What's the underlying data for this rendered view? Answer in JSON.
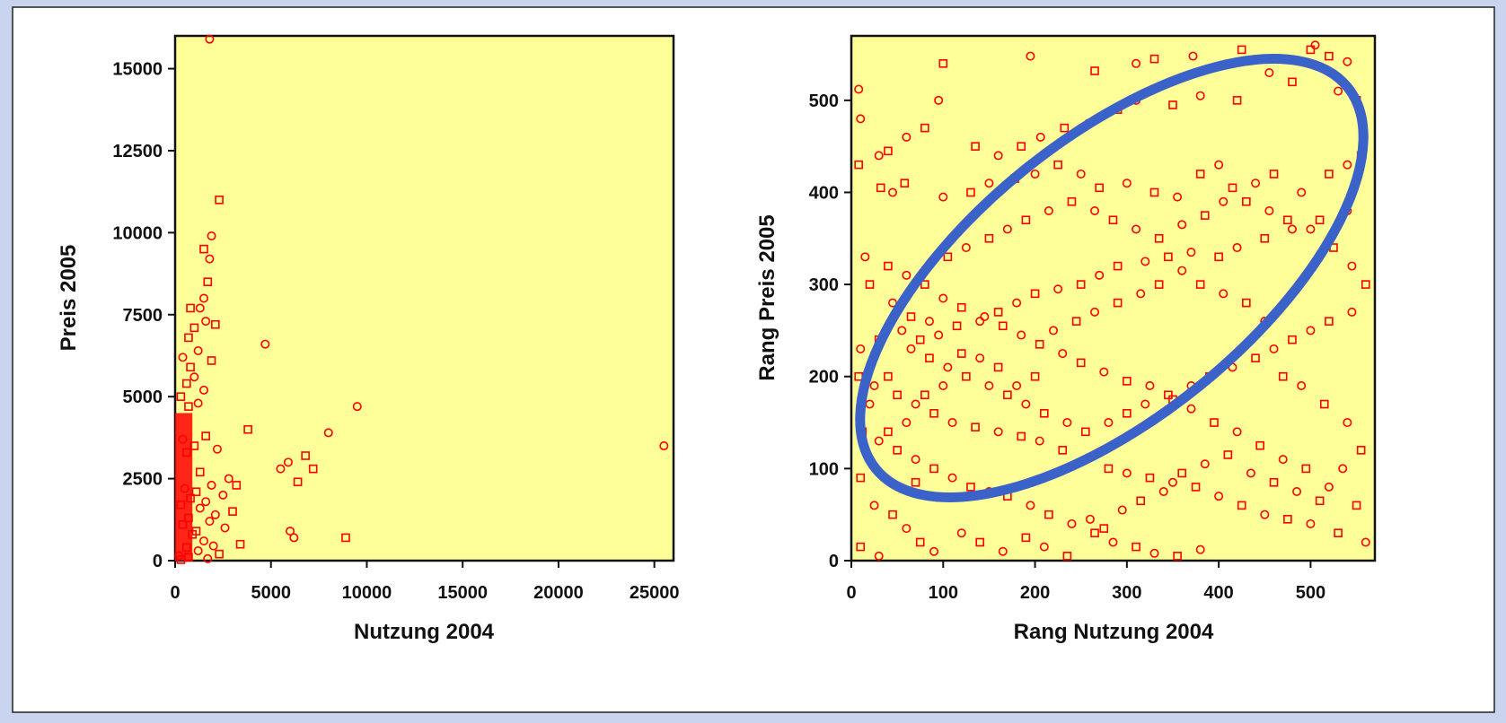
{
  "colors": {
    "plot_background": "#ffff99",
    "marker": "#ff0000",
    "highlight_ellipse": "#3a62c8",
    "panel_background": "#ffffff"
  },
  "chart_data": [
    {
      "type": "scatter",
      "title": "",
      "xlabel": "Nutzung 2004",
      "ylabel": "Preis 2005",
      "xlim": [
        0,
        26000
      ],
      "ylim": [
        0,
        16000
      ],
      "xticks": [
        0,
        5000,
        10000,
        15000,
        20000,
        25000
      ],
      "xtick_labels": [
        "0",
        "5000",
        "10000",
        "15000",
        "20000",
        "25000"
      ],
      "yticks": [
        0,
        2500,
        5000,
        7500,
        10000,
        12500,
        15000
      ],
      "ytick_labels": [
        "0",
        "2500",
        "5000",
        "7500",
        "10000",
        "12500",
        "15000"
      ],
      "grid": false,
      "marker_shapes": [
        "circle",
        "square"
      ],
      "points": [
        [
          1800,
          15900
        ],
        [
          2300,
          11000
        ],
        [
          1900,
          9900
        ],
        [
          1500,
          9500
        ],
        [
          1800,
          9200
        ],
        [
          1700,
          8500
        ],
        [
          1500,
          8000
        ],
        [
          800,
          7700
        ],
        [
          1300,
          7700
        ],
        [
          2100,
          7200
        ],
        [
          1600,
          7300
        ],
        [
          1000,
          7100
        ],
        [
          4700,
          6600
        ],
        [
          700,
          6800
        ],
        [
          1200,
          6400
        ],
        [
          1900,
          6100
        ],
        [
          400,
          6200
        ],
        [
          800,
          5900
        ],
        [
          1000,
          5600
        ],
        [
          600,
          5400
        ],
        [
          1500,
          5200
        ],
        [
          300,
          5000
        ],
        [
          1200,
          4800
        ],
        [
          700,
          4700
        ],
        [
          9500,
          4700
        ],
        [
          3800,
          4000
        ],
        [
          8000,
          3900
        ],
        [
          1600,
          3800
        ],
        [
          400,
          3700
        ],
        [
          1000,
          3500
        ],
        [
          2200,
          3400
        ],
        [
          600,
          3300
        ],
        [
          25500,
          3500
        ],
        [
          6800,
          3200
        ],
        [
          5900,
          3000
        ],
        [
          7200,
          2800
        ],
        [
          5500,
          2800
        ],
        [
          1300,
          2700
        ],
        [
          2800,
          2500
        ],
        [
          6400,
          2400
        ],
        [
          1900,
          2300
        ],
        [
          3200,
          2300
        ],
        [
          500,
          2200
        ],
        [
          1100,
          2100
        ],
        [
          2500,
          2000
        ],
        [
          800,
          1900
        ],
        [
          1600,
          1800
        ],
        [
          300,
          1700
        ],
        [
          1300,
          1600
        ],
        [
          3000,
          1500
        ],
        [
          2100,
          1400
        ],
        [
          700,
          1300
        ],
        [
          1800,
          1200
        ],
        [
          400,
          1100
        ],
        [
          2600,
          1000
        ],
        [
          1100,
          900
        ],
        [
          6000,
          900
        ],
        [
          900,
          800
        ],
        [
          6200,
          700
        ],
        [
          8900,
          700
        ],
        [
          1500,
          600
        ],
        [
          3400,
          500
        ],
        [
          2000,
          450
        ],
        [
          600,
          400
        ],
        [
          1200,
          300
        ],
        [
          2300,
          200
        ],
        [
          200,
          150
        ],
        [
          700,
          100
        ],
        [
          1700,
          60
        ],
        [
          300,
          30
        ]
      ]
    },
    {
      "type": "scatter",
      "title": "",
      "xlabel": "Rang Nutzung 2004",
      "ylabel": "Rang Preis 2005",
      "xlim": [
        0,
        570
      ],
      "ylim": [
        0,
        570
      ],
      "xticks": [
        0,
        100,
        200,
        300,
        400,
        500
      ],
      "xtick_labels": [
        "0",
        "100",
        "200",
        "300",
        "400",
        "500"
      ],
      "yticks": [
        0,
        100,
        200,
        300,
        400,
        500
      ],
      "ytick_labels": [
        "0",
        "100",
        "200",
        "300",
        "400",
        "500"
      ],
      "grid": false,
      "marker_shapes": [
        "circle",
        "square"
      ],
      "annotation": {
        "shape": "ellipse",
        "color": "#3a62c8"
      },
      "points": [
        [
          8,
          512
        ],
        [
          100,
          540
        ],
        [
          195,
          548
        ],
        [
          265,
          532
        ],
        [
          310,
          540
        ],
        [
          330,
          545
        ],
        [
          372,
          548
        ],
        [
          425,
          555
        ],
        [
          460,
          545
        ],
        [
          500,
          555
        ],
        [
          505,
          560
        ],
        [
          520,
          548
        ],
        [
          540,
          542
        ],
        [
          550,
          500
        ],
        [
          530,
          510
        ],
        [
          480,
          520
        ],
        [
          455,
          530
        ],
        [
          420,
          500
        ],
        [
          380,
          505
        ],
        [
          350,
          495
        ],
        [
          310,
          500
        ],
        [
          290,
          490
        ],
        [
          258,
          475
        ],
        [
          232,
          470
        ],
        [
          206,
          460
        ],
        [
          185,
          450
        ],
        [
          160,
          440
        ],
        [
          135,
          450
        ],
        [
          95,
          500
        ],
        [
          80,
          470
        ],
        [
          60,
          460
        ],
        [
          40,
          445
        ],
        [
          10,
          480
        ],
        [
          8,
          430
        ],
        [
          30,
          440
        ],
        [
          58,
          410
        ],
        [
          45,
          400
        ],
        [
          32,
          405
        ],
        [
          100,
          395
        ],
        [
          130,
          400
        ],
        [
          150,
          410
        ],
        [
          178,
          415
        ],
        [
          200,
          420
        ],
        [
          225,
          430
        ],
        [
          250,
          420
        ],
        [
          270,
          405
        ],
        [
          300,
          410
        ],
        [
          330,
          400
        ],
        [
          355,
          395
        ],
        [
          380,
          420
        ],
        [
          400,
          430
        ],
        [
          415,
          405
        ],
        [
          440,
          410
        ],
        [
          460,
          420
        ],
        [
          490,
          400
        ],
        [
          520,
          420
        ],
        [
          540,
          430
        ],
        [
          555,
          440
        ],
        [
          540,
          380
        ],
        [
          510,
          370
        ],
        [
          480,
          360
        ],
        [
          450,
          350
        ],
        [
          420,
          340
        ],
        [
          400,
          330
        ],
        [
          370,
          335
        ],
        [
          345,
          330
        ],
        [
          320,
          325
        ],
        [
          290,
          320
        ],
        [
          270,
          310
        ],
        [
          250,
          300
        ],
        [
          225,
          295
        ],
        [
          200,
          290
        ],
        [
          180,
          280
        ],
        [
          160,
          270
        ],
        [
          140,
          260
        ],
        [
          115,
          255
        ],
        [
          95,
          245
        ],
        [
          75,
          240
        ],
        [
          55,
          250
        ],
        [
          30,
          240
        ],
        [
          10,
          230
        ],
        [
          8,
          200
        ],
        [
          25,
          190
        ],
        [
          50,
          180
        ],
        [
          70,
          170
        ],
        [
          90,
          160
        ],
        [
          110,
          150
        ],
        [
          135,
          145
        ],
        [
          160,
          140
        ],
        [
          185,
          135
        ],
        [
          205,
          130
        ],
        [
          230,
          120
        ],
        [
          255,
          110
        ],
        [
          280,
          100
        ],
        [
          300,
          95
        ],
        [
          325,
          90
        ],
        [
          350,
          85
        ],
        [
          375,
          80
        ],
        [
          400,
          70
        ],
        [
          425,
          60
        ],
        [
          450,
          50
        ],
        [
          475,
          45
        ],
        [
          500,
          40
        ],
        [
          530,
          30
        ],
        [
          560,
          20
        ],
        [
          550,
          60
        ],
        [
          520,
          80
        ],
        [
          495,
          100
        ],
        [
          470,
          110
        ],
        [
          445,
          125
        ],
        [
          420,
          140
        ],
        [
          395,
          150
        ],
        [
          370,
          165
        ],
        [
          350,
          175
        ],
        [
          325,
          190
        ],
        [
          300,
          195
        ],
        [
          275,
          205
        ],
        [
          250,
          215
        ],
        [
          230,
          225
        ],
        [
          205,
          235
        ],
        [
          185,
          245
        ],
        [
          165,
          255
        ],
        [
          145,
          265
        ],
        [
          120,
          275
        ],
        [
          100,
          285
        ],
        [
          80,
          300
        ],
        [
          60,
          310
        ],
        [
          40,
          320
        ],
        [
          15,
          330
        ],
        [
          20,
          300
        ],
        [
          45,
          280
        ],
        [
          65,
          265
        ],
        [
          85,
          260
        ],
        [
          105,
          330
        ],
        [
          125,
          340
        ],
        [
          150,
          350
        ],
        [
          170,
          360
        ],
        [
          190,
          370
        ],
        [
          215,
          380
        ],
        [
          240,
          390
        ],
        [
          265,
          380
        ],
        [
          285,
          370
        ],
        [
          310,
          360
        ],
        [
          335,
          350
        ],
        [
          360,
          365
        ],
        [
          385,
          375
        ],
        [
          405,
          390
        ],
        [
          430,
          390
        ],
        [
          455,
          380
        ],
        [
          475,
          370
        ],
        [
          500,
          360
        ],
        [
          525,
          340
        ],
        [
          545,
          320
        ],
        [
          560,
          300
        ],
        [
          545,
          270
        ],
        [
          520,
          260
        ],
        [
          500,
          250
        ],
        [
          480,
          240
        ],
        [
          460,
          230
        ],
        [
          440,
          220
        ],
        [
          415,
          210
        ],
        [
          390,
          200
        ],
        [
          370,
          190
        ],
        [
          345,
          180
        ],
        [
          320,
          170
        ],
        [
          300,
          160
        ],
        [
          280,
          150
        ],
        [
          255,
          140
        ],
        [
          235,
          150
        ],
        [
          210,
          160
        ],
        [
          190,
          170
        ],
        [
          170,
          180
        ],
        [
          150,
          190
        ],
        [
          125,
          200
        ],
        [
          105,
          210
        ],
        [
          85,
          220
        ],
        [
          65,
          230
        ],
        [
          40,
          200
        ],
        [
          20,
          170
        ],
        [
          12,
          140
        ],
        [
          30,
          130
        ],
        [
          50,
          120
        ],
        [
          70,
          110
        ],
        [
          90,
          100
        ],
        [
          110,
          90
        ],
        [
          130,
          80
        ],
        [
          150,
          75
        ],
        [
          170,
          70
        ],
        [
          195,
          60
        ],
        [
          215,
          50
        ],
        [
          240,
          40
        ],
        [
          265,
          30
        ],
        [
          285,
          20
        ],
        [
          310,
          15
        ],
        [
          330,
          8
        ],
        [
          355,
          5
        ],
        [
          380,
          12
        ],
        [
          10,
          90
        ],
        [
          25,
          60
        ],
        [
          45,
          50
        ],
        [
          60,
          35
        ],
        [
          75,
          20
        ],
        [
          90,
          10
        ],
        [
          10,
          15
        ],
        [
          30,
          5
        ],
        [
          70,
          85
        ],
        [
          120,
          30
        ],
        [
          140,
          20
        ],
        [
          165,
          10
        ],
        [
          190,
          25
        ],
        [
          210,
          15
        ],
        [
          235,
          5
        ],
        [
          260,
          45
        ],
        [
          275,
          35
        ],
        [
          295,
          55
        ],
        [
          315,
          65
        ],
        [
          340,
          75
        ],
        [
          360,
          95
        ],
        [
          385,
          105
        ],
        [
          410,
          115
        ],
        [
          435,
          95
        ],
        [
          460,
          85
        ],
        [
          485,
          75
        ],
        [
          510,
          65
        ],
        [
          535,
          100
        ],
        [
          555,
          120
        ],
        [
          540,
          150
        ],
        [
          515,
          170
        ],
        [
          490,
          190
        ],
        [
          470,
          200
        ],
        [
          450,
          260
        ],
        [
          430,
          280
        ],
        [
          405,
          290
        ],
        [
          380,
          300
        ],
        [
          360,
          315
        ],
        [
          335,
          300
        ],
        [
          315,
          290
        ],
        [
          290,
          280
        ],
        [
          265,
          270
        ],
        [
          245,
          260
        ],
        [
          220,
          250
        ],
        [
          200,
          200
        ],
        [
          180,
          190
        ],
        [
          160,
          210
        ],
        [
          140,
          220
        ],
        [
          120,
          225
        ],
        [
          100,
          190
        ],
        [
          80,
          180
        ],
        [
          60,
          150
        ],
        [
          40,
          140
        ],
        [
          20,
          110
        ]
      ]
    }
  ]
}
